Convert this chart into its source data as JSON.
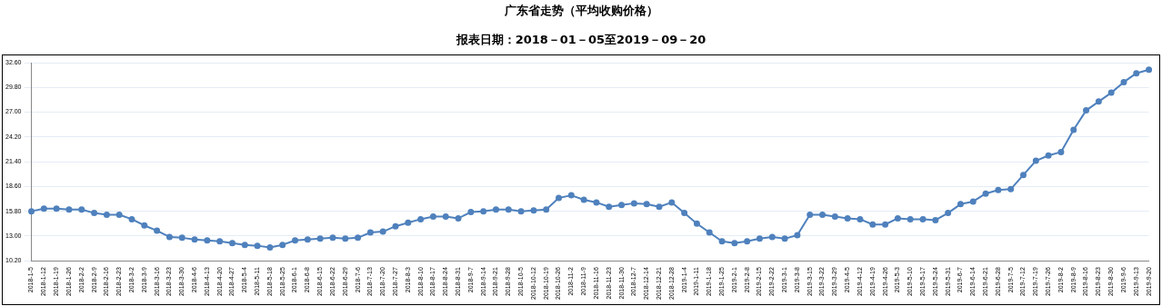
{
  "chart_data": {
    "type": "line",
    "title": "广东省走势（平均收购价格）",
    "subtitle": "报表日期：2018－01－05至2019－09－20",
    "categories": [
      "2018-1-5",
      "2018-1-12",
      "2018-1-19",
      "2018-1-26",
      "2018-2-2",
      "2018-2-9",
      "2018-2-16",
      "2018-2-23",
      "2018-3-2",
      "2018-3-9",
      "2018-3-16",
      "2018-3-23",
      "2018-3-30",
      "2018-4-6",
      "2018-4-13",
      "2018-4-20",
      "2018-4-27",
      "2018-5-4",
      "2018-5-11",
      "2018-5-18",
      "2018-5-25",
      "2018-6-1",
      "2018-6-8",
      "2018-6-15",
      "2018-6-22",
      "2018-6-29",
      "2018-7-6",
      "2018-7-13",
      "2018-7-20",
      "2018-7-27",
      "2018-8-3",
      "2018-8-10",
      "2018-8-17",
      "2018-8-24",
      "2018-8-31",
      "2018-9-7",
      "2018-9-14",
      "2018-9-21",
      "2018-9-28",
      "2018-10-5",
      "2018-10-12",
      "2018-10-19",
      "2018-10-26",
      "2018-11-2",
      "2018-11-9",
      "2018-11-16",
      "2018-11-23",
      "2018-11-30",
      "2018-12-7",
      "2018-12-14",
      "2018-12-21",
      "2018-12-28",
      "2019-1-4",
      "2019-1-11",
      "2019-1-18",
      "2019-1-25",
      "2019-2-1",
      "2019-2-8",
      "2019-2-15",
      "2019-2-22",
      "2019-3-1",
      "2019-3-8",
      "2019-3-15",
      "2019-3-22",
      "2019-3-29",
      "2019-4-5",
      "2019-4-12",
      "2019-4-19",
      "2019-4-26",
      "2019-5-3",
      "2019-5-10",
      "2019-5-17",
      "2019-5-24",
      "2019-5-31",
      "2019-6-7",
      "2019-6-14",
      "2019-6-21",
      "2019-6-28",
      "2019-7-5",
      "2019-7-12",
      "2019-7-19",
      "2019-7-26",
      "2019-8-2",
      "2019-8-9",
      "2019-8-16",
      "2019-8-23",
      "2019-8-30",
      "2019-9-6",
      "2019-9-13",
      "2019-9-20"
    ],
    "series": [
      {
        "color": "#4f81bd",
        "values": [
          15.8,
          16.1,
          16.1,
          16.0,
          16.0,
          15.6,
          15.4,
          15.4,
          14.9,
          14.2,
          13.6,
          12.9,
          12.8,
          12.6,
          12.5,
          12.4,
          12.2,
          12.0,
          11.9,
          11.7,
          12.0,
          12.5,
          12.6,
          12.7,
          12.8,
          12.7,
          12.8,
          13.4,
          13.5,
          14.1,
          14.5,
          14.9,
          15.2,
          15.2,
          15.0,
          15.7,
          15.8,
          16.0,
          16.0,
          15.8,
          15.9,
          16.0,
          17.3,
          17.6,
          17.1,
          16.8,
          16.3,
          16.5,
          16.7,
          16.6,
          16.3,
          16.8,
          15.6,
          14.4,
          13.4,
          12.4,
          12.2,
          12.4,
          12.7,
          12.9,
          12.7,
          13.1,
          15.4,
          15.4,
          15.2,
          15.0,
          14.9,
          14.3,
          14.3,
          15.0,
          14.9,
          14.9,
          14.8,
          15.6,
          16.6,
          16.9,
          17.8,
          18.2,
          18.3,
          19.9,
          21.5,
          22.1,
          22.5,
          25.0,
          27.2,
          28.2,
          29.2,
          30.4,
          31.4,
          31.8
        ]
      }
    ],
    "ylim": [
      10.2,
      32.6
    ],
    "yticks": [
      {
        "value": 10.2,
        "label": "10.20"
      },
      {
        "value": 13,
        "label": "13.00"
      },
      {
        "value": 15.8,
        "label": "15.80"
      },
      {
        "value": 18.6,
        "label": "18.60"
      },
      {
        "value": 21.4,
        "label": "21.40"
      },
      {
        "value": 24.2,
        "label": "24.20"
      },
      {
        "value": 27,
        "label": "27.00"
      },
      {
        "value": 29.8,
        "label": "29.80"
      },
      {
        "value": 32.6,
        "label": "32.60"
      }
    ],
    "grid": "y",
    "marker": "circle",
    "line_style": "solid"
  }
}
